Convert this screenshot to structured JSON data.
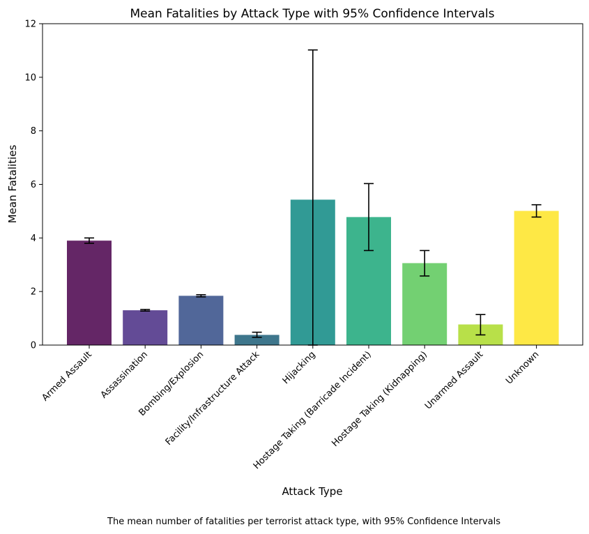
{
  "chart_data": {
    "type": "bar",
    "title": "Mean Fatalities by Attack Type with 95% Confidence Intervals",
    "xlabel": "Attack Type",
    "ylabel": "Mean Fatalities",
    "caption": "The mean number of fatalities per terrorist attack type, with 95% Confidence Intervals",
    "ylim": [
      0,
      12
    ],
    "yticks": [
      0,
      2,
      4,
      6,
      8,
      10,
      12
    ],
    "grid": false,
    "legend": "none",
    "categories": [
      "Armed Assault",
      "Assassination",
      "Bombing/Explosion",
      "Facility/Infrastructure Attack",
      "Hijacking",
      "Hostage Taking (Barricade Incident)",
      "Hostage Taking (Kidnapping)",
      "Unarmed Assault",
      "Unknown"
    ],
    "values": [
      3.9,
      1.3,
      1.84,
      0.38,
      5.43,
      4.78,
      3.06,
      0.77,
      5.01
    ],
    "ci_lower": [
      3.8,
      1.27,
      1.8,
      0.29,
      0.0,
      3.53,
      2.58,
      0.38,
      4.78
    ],
    "ci_upper": [
      4.0,
      1.33,
      1.88,
      0.48,
      11.02,
      6.03,
      3.53,
      1.14,
      5.24
    ],
    "colors": [
      "#5c1a5e",
      "#5b4190",
      "#485f94",
      "#346f86",
      "#26958f",
      "#33b087",
      "#6ccd6a",
      "#b4de3f",
      "#fee73b"
    ]
  }
}
